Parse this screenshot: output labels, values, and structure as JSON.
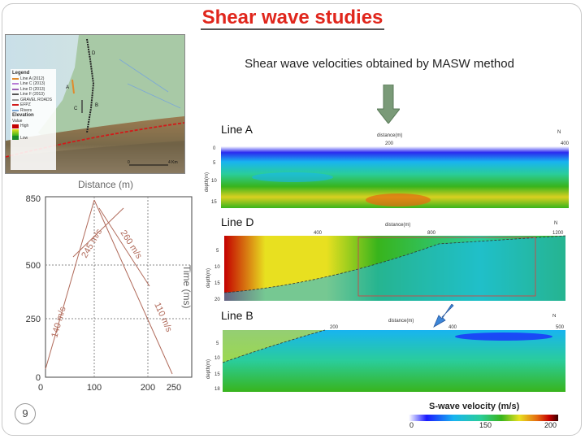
{
  "slide": {
    "title": "Shear wave studies",
    "subtitle": "Shear wave velocities obtained by MASW method",
    "page_number": "9"
  },
  "map": {
    "legend_title": "Legend",
    "legend_items": [
      {
        "label": "Line A (2012)",
        "color": "#e08a2c"
      },
      {
        "label": "Line C (2013)",
        "color": "#b77bd6"
      },
      {
        "label": "Line D (2013)",
        "color": "#9a5fb4"
      },
      {
        "label": "Line F (2013)",
        "color": "#555555"
      },
      {
        "label": "GRAVEL ROADS",
        "color": "#999999"
      },
      {
        "label": "EFPZ",
        "color": "#d11a1a"
      },
      {
        "label": "Rivers",
        "color": "#7aa7d8"
      }
    ],
    "elevation_label": "Elevation",
    "value_label": "Value",
    "high_label": "High",
    "low_label": "Low",
    "line_labels": [
      "D",
      "A",
      "C",
      "B"
    ],
    "scale_label": "4 Km",
    "scale_zero": "0"
  },
  "travel_time": {
    "xlabel": "Distance (m)",
    "ylabel": "Time (ms)",
    "x_ticks": [
      "0",
      "100",
      "200",
      "250"
    ],
    "y_ticks": [
      "850",
      "500",
      "250",
      "0"
    ],
    "segment_labels": [
      "245 m/s",
      "260 m/s",
      "140 m/s",
      "110 m/s"
    ]
  },
  "profiles": [
    {
      "name": "Line A",
      "axis_title": "distance(m)",
      "x_ticks": [
        "200",
        "400"
      ],
      "y_ticks": [
        "0",
        "5",
        "10",
        "15"
      ],
      "ylabel": "depth(m)",
      "north": "N"
    },
    {
      "name": "Line D",
      "axis_title": "distance(m)",
      "x_ticks": [
        "400",
        "800",
        "1200"
      ],
      "y_ticks": [
        "5",
        "10",
        "15",
        "20"
      ],
      "ylabel": "depth(m)",
      "north": "N"
    },
    {
      "name": "Line B",
      "axis_title": "distance(m)",
      "x_ticks": [
        "200",
        "400",
        "500"
      ],
      "y_ticks": [
        "5",
        "10",
        "15",
        "18"
      ],
      "ylabel": "depth(m)",
      "north": "N"
    }
  ],
  "colorbar": {
    "title": "S-wave velocity (m/s)",
    "ticks": [
      "0",
      "150",
      "200"
    ]
  },
  "colors": {
    "title": "#e0261c",
    "arrow": "#7a9a78",
    "arrow_diag": "#3c86d8"
  }
}
